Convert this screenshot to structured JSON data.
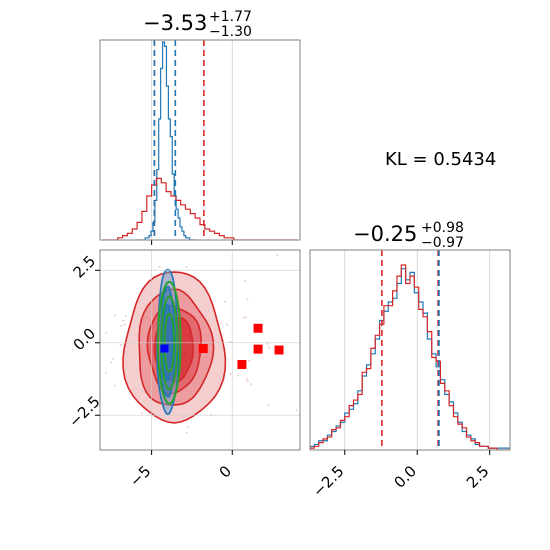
{
  "chart_data": [
    {
      "type": "histogram",
      "panel": "top-left",
      "title": {
        "value": "−3.53",
        "plus": "+1.77",
        "minus": "−1.30"
      },
      "xlim": [
        -8.2,
        4.2
      ],
      "grid": true,
      "series": [
        {
          "name": "",
          "color": "#1f77b4",
          "bin_start": -6.0,
          "bin_width": 0.12,
          "heights": [
            0.0,
            0.0,
            0.0,
            0.0,
            0.0,
            0.01,
            0.01,
            0.02,
            0.04,
            0.08,
            0.18,
            0.32,
            0.55,
            0.78,
            0.9,
            0.88,
            0.7,
            0.55,
            0.47,
            0.3,
            0.2,
            0.14,
            0.1,
            0.06,
            0.04,
            0.02,
            0.01,
            0.01,
            0.0,
            0.0,
            0.0,
            0.0
          ]
        },
        {
          "name": "",
          "color": "#d62728",
          "bin_start": -8.0,
          "bin_width": 0.3,
          "heights": [
            0.0,
            0.0,
            0.0,
            0.01,
            0.02,
            0.03,
            0.05,
            0.08,
            0.13,
            0.2,
            0.25,
            0.28,
            0.26,
            0.22,
            0.2,
            0.18,
            0.16,
            0.14,
            0.12,
            0.1,
            0.07,
            0.05,
            0.04,
            0.03,
            0.02,
            0.01,
            0.01,
            0.0,
            0.0,
            0.0,
            0.0,
            0.0,
            0.0,
            0.0,
            0.0,
            0.0,
            0.0,
            0.0,
            0.0,
            0.0
          ]
        }
      ],
      "vlines": [
        {
          "x": -4.83,
          "color": "#d62728"
        },
        {
          "x": -4.83,
          "color": "#1f77b4"
        },
        {
          "x": -3.53,
          "color": "#1f77b4"
        },
        {
          "x": -1.76,
          "color": "#d62728"
        }
      ]
    },
    {
      "type": "contour",
      "panel": "bottom-left",
      "xlim": [
        -8.2,
        4.2
      ],
      "ylim": [
        -3.7,
        3.2
      ],
      "xticks": [
        -5,
        0
      ],
      "yticks": [
        -2.5,
        0.0,
        2.5
      ],
      "xtick_labels": [
        "−5",
        "0"
      ],
      "ytick_labels": [
        "−2.5",
        "0.0",
        "2.5"
      ],
      "grid": true,
      "red_contours": {
        "color": "#d62728",
        "center": [
          -3.6,
          -0.2
        ],
        "radii": [
          [
            6.2,
            2.6
          ],
          [
            4.6,
            2.0
          ],
          [
            3.3,
            1.5
          ],
          [
            2.4,
            1.1
          ]
        ]
      },
      "blue_contours": {
        "color": "#1f77b4",
        "center": [
          -4.0,
          0.0
        ],
        "radii": [
          [
            0.65,
            2.5
          ],
          [
            0.45,
            1.9
          ],
          [
            0.3,
            1.3
          ]
        ]
      },
      "green_contours": {
        "color": "#2ca02c",
        "center": [
          -3.9,
          0.0
        ],
        "radii": [
          [
            1.4,
            2.1
          ],
          [
            1.0,
            1.6
          ],
          [
            0.6,
            1.0
          ]
        ]
      },
      "red_markers": [
        [
          -1.8,
          -0.2
        ],
        [
          1.6,
          0.5
        ],
        [
          1.6,
          -0.22
        ],
        [
          2.9,
          -0.25
        ],
        [
          0.6,
          -0.75
        ]
      ],
      "blue_marker": [
        -4.2,
        -0.2
      ]
    },
    {
      "type": "histogram",
      "panel": "bottom-right",
      "title": {
        "value": "−0.25",
        "plus": "+0.98",
        "minus": "−0.97"
      },
      "xlim": [
        -3.7,
        3.2
      ],
      "xticks": [
        -2.5,
        0.0,
        2.5
      ],
      "xtick_labels": [
        "−2.5",
        "0.0",
        "2.5"
      ],
      "grid": true,
      "series": [
        {
          "name": "",
          "color": "#1f77b4",
          "bin_start": -3.7,
          "bin_width": 0.15,
          "heights": [
            0.02,
            0.03,
            0.05,
            0.05,
            0.08,
            0.1,
            0.13,
            0.15,
            0.2,
            0.22,
            0.25,
            0.32,
            0.4,
            0.46,
            0.52,
            0.6,
            0.7,
            0.75,
            0.8,
            0.82,
            0.9,
            0.98,
            0.92,
            0.96,
            0.85,
            0.8,
            0.74,
            0.6,
            0.52,
            0.45,
            0.38,
            0.3,
            0.26,
            0.2,
            0.15,
            0.1,
            0.08,
            0.06,
            0.03,
            0.02,
            0.02,
            0.01,
            0.01,
            0.01,
            0.01,
            0.01
          ]
        },
        {
          "name": "",
          "color": "#d62728",
          "bin_start": -3.7,
          "bin_width": 0.15,
          "heights": [
            0.01,
            0.02,
            0.04,
            0.06,
            0.07,
            0.11,
            0.12,
            0.16,
            0.18,
            0.24,
            0.27,
            0.3,
            0.42,
            0.44,
            0.55,
            0.62,
            0.68,
            0.78,
            0.78,
            0.86,
            0.94,
            1.0,
            0.9,
            0.94,
            0.88,
            0.76,
            0.72,
            0.64,
            0.5,
            0.48,
            0.36,
            0.32,
            0.24,
            0.18,
            0.14,
            0.12,
            0.07,
            0.05,
            0.04,
            0.02,
            0.02,
            0.01,
            0.01,
            0.0,
            0.0,
            0.0
          ]
        }
      ],
      "vlines": [
        {
          "x": -1.22,
          "color": "#d62728"
        },
        {
          "x": 0.72,
          "color": "#d62728"
        },
        {
          "x": 0.75,
          "color": "#1f77b4"
        }
      ]
    }
  ],
  "annotation": {
    "kl_text": "KL = 0.5434"
  }
}
